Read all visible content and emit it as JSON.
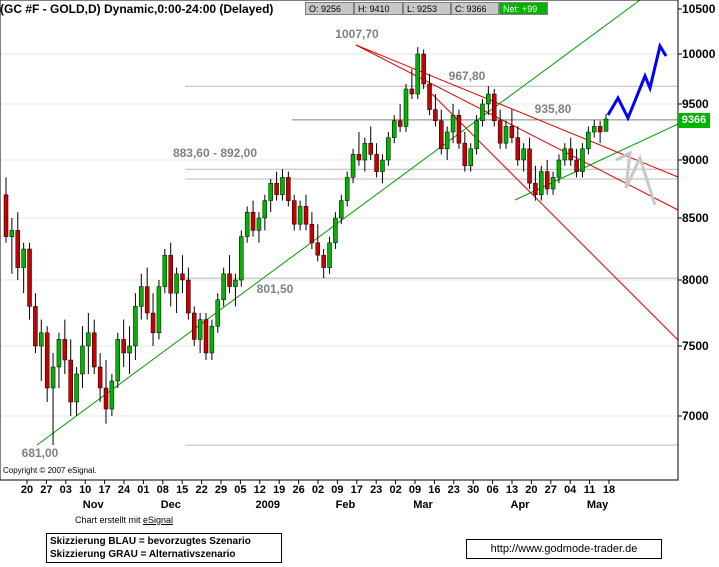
{
  "header": {
    "title": "(GC #F - GOLD,D) Dynamic,0:00-24:00 (Delayed)",
    "open": "O: 9256",
    "high": "H: 9410",
    "low": "L: 9253",
    "close": "C: 9366",
    "net": "Net: +99"
  },
  "footer": {
    "copyright": "Copyright © 2007 eSignal.",
    "credit_prefix": "Chart erstellt mit",
    "credit_link": "eSignal",
    "legend_blue": "Skizzierung BLAU = bevorzugtes Szenario",
    "legend_grey": "Skizzierung GRAU = Alternativszenario",
    "url": "http://www.godmode-trader.de"
  },
  "chart_data": {
    "type": "candlestick",
    "y_axis": {
      "labels": [
        "10500",
        "10000",
        "9500",
        "9000",
        "8500",
        "8000",
        "7500",
        "7000"
      ],
      "values": [
        10500,
        10000,
        9500,
        9000,
        8500,
        8000,
        7500,
        7000
      ],
      "range": [
        6700,
        10550
      ]
    },
    "x_axis": {
      "day_labels": [
        "20",
        "27",
        "03",
        "10",
        "17",
        "24",
        "01",
        "08",
        "15",
        "22",
        "29",
        "05",
        "12",
        "19",
        "26",
        "02",
        "09",
        "17",
        "23",
        "02",
        "09",
        "16",
        "23",
        "30",
        "06",
        "13",
        "20",
        "27",
        "04",
        "11",
        "18"
      ],
      "month_labels": [
        {
          "label": "Nov",
          "day_index": 3
        },
        {
          "label": "Dec",
          "day_index": 7
        },
        {
          "label": "2009",
          "day_index": 12
        },
        {
          "label": "Feb",
          "day_index": 16
        },
        {
          "label": "Mar",
          "day_index": 20
        },
        {
          "label": "Apr",
          "day_index": 25
        },
        {
          "label": "May",
          "day_index": 29
        }
      ]
    },
    "last_price": "9366",
    "annotations": [
      "1007,70",
      "967,80",
      "935,80",
      "883,60 - 892,00",
      "801,50",
      "681,00"
    ],
    "key_prices": [
      10077,
      9678,
      9358,
      8836,
      8920,
      8015,
      6810
    ],
    "colors": {
      "bull": "#00b400",
      "bear": "#c80000",
      "support_line": "#00a000",
      "resistance_line": "#e00000",
      "preferred": "#0000ff",
      "alternative": "#c8c8c8"
    },
    "candles": [
      [
        8700,
        8850,
        8300,
        8350
      ],
      [
        8350,
        8500,
        8050,
        8400
      ],
      [
        8400,
        8550,
        8000,
        8100
      ],
      [
        8100,
        8300,
        7900,
        8250
      ],
      [
        8250,
        8300,
        7700,
        7800
      ],
      [
        7800,
        7900,
        7450,
        7500
      ],
      [
        7500,
        7700,
        7250,
        7600
      ],
      [
        7600,
        7650,
        7100,
        7200
      ],
      [
        7200,
        7450,
        6810,
        7350
      ],
      [
        7350,
        7600,
        7200,
        7550
      ],
      [
        7550,
        7700,
        7300,
        7400
      ],
      [
        7400,
        7550,
        7000,
        7100
      ],
      [
        7100,
        7350,
        7000,
        7300
      ],
      [
        7300,
        7650,
        7200,
        7500
      ],
      [
        7500,
        7750,
        7300,
        7600
      ],
      [
        7600,
        7700,
        7300,
        7350
      ],
      [
        7350,
        7450,
        7100,
        7200
      ],
      [
        7200,
        7400,
        6950,
        7050
      ],
      [
        7050,
        7300,
        7000,
        7250
      ],
      [
        7250,
        7600,
        7200,
        7550
      ],
      [
        7550,
        7700,
        7350,
        7450
      ],
      [
        7450,
        7650,
        7300,
        7500
      ],
      [
        7500,
        7900,
        7400,
        7800
      ],
      [
        7800,
        8050,
        7700,
        7950
      ],
      [
        7950,
        8100,
        7700,
        7750
      ],
      [
        7750,
        7900,
        7500,
        7600
      ],
      [
        7600,
        8000,
        7550,
        7950
      ],
      [
        7950,
        8250,
        7900,
        8200
      ],
      [
        8200,
        8300,
        7800,
        7900
      ],
      [
        7900,
        8100,
        7750,
        8050
      ],
      [
        8050,
        8200,
        7900,
        8000
      ],
      [
        8000,
        8100,
        7700,
        7750
      ],
      [
        7750,
        7800,
        7500,
        7550
      ],
      [
        7550,
        7750,
        7450,
        7700
      ],
      [
        7700,
        7750,
        7400,
        7450
      ],
      [
        7450,
        7700,
        7400,
        7650
      ],
      [
        7650,
        7900,
        7600,
        7850
      ],
      [
        7850,
        8100,
        7800,
        8050
      ],
      [
        8050,
        8200,
        7900,
        7950
      ],
      [
        7950,
        8050,
        7800,
        8000
      ],
      [
        8000,
        8400,
        7950,
        8350
      ],
      [
        8350,
        8600,
        8300,
        8550
      ],
      [
        8550,
        8650,
        8350,
        8400
      ],
      [
        8400,
        8550,
        8300,
        8500
      ],
      [
        8500,
        8700,
        8400,
        8650
      ],
      [
        8650,
        8836,
        8550,
        8800
      ],
      [
        8800,
        8900,
        8650,
        8700
      ],
      [
        8700,
        8920,
        8650,
        8850
      ],
      [
        8850,
        8900,
        8600,
        8650
      ],
      [
        8650,
        8700,
        8400,
        8450
      ],
      [
        8450,
        8650,
        8400,
        8600
      ],
      [
        8600,
        8700,
        8400,
        8450
      ],
      [
        8450,
        8550,
        8250,
        8300
      ],
      [
        8300,
        8450,
        8150,
        8200
      ],
      [
        8200,
        8250,
        8015,
        8100
      ],
      [
        8100,
        8350,
        8050,
        8300
      ],
      [
        8300,
        8550,
        8250,
        8500
      ],
      [
        8500,
        8700,
        8450,
        8650
      ],
      [
        8650,
        8900,
        8600,
        8850
      ],
      [
        8850,
        9100,
        8800,
        9050
      ],
      [
        9050,
        9250,
        8950,
        9000
      ],
      [
        9000,
        9200,
        8900,
        9150
      ],
      [
        9150,
        9300,
        9000,
        9050
      ],
      [
        9050,
        9150,
        8850,
        8900
      ],
      [
        8900,
        9050,
        8800,
        9000
      ],
      [
        9000,
        9250,
        8950,
        9200
      ],
      [
        9200,
        9400,
        9150,
        9350
      ],
      [
        9350,
        9500,
        9250,
        9300
      ],
      [
        9300,
        9700,
        9250,
        9650
      ],
      [
        9650,
        9850,
        9550,
        9600
      ],
      [
        9600,
        10077,
        9550,
        10000
      ],
      [
        10000,
        10050,
        9650,
        9700
      ],
      [
        9700,
        9800,
        9400,
        9450
      ],
      [
        9450,
        9600,
        9300,
        9350
      ],
      [
        9350,
        9450,
        9050,
        9100
      ],
      [
        9100,
        9300,
        9000,
        9250
      ],
      [
        9250,
        9500,
        9150,
        9400
      ],
      [
        9400,
        9450,
        9100,
        9150
      ],
      [
        9150,
        9250,
        8900,
        8950
      ],
      [
        8950,
        9150,
        8900,
        9100
      ],
      [
        9100,
        9400,
        9050,
        9350
      ],
      [
        9350,
        9550,
        9300,
        9500
      ],
      [
        9500,
        9678,
        9400,
        9600
      ],
      [
        9600,
        9650,
        9300,
        9350
      ],
      [
        9350,
        9450,
        9100,
        9150
      ],
      [
        9150,
        9350,
        9100,
        9300
      ],
      [
        9300,
        9450,
        9150,
        9200
      ],
      [
        9200,
        9300,
        8950,
        9000
      ],
      [
        9000,
        9150,
        8900,
        9100
      ],
      [
        9100,
        9200,
        8750,
        8800
      ],
      [
        8800,
        8950,
        8650,
        8700
      ],
      [
        8700,
        8950,
        8650,
        8900
      ],
      [
        8900,
        9000,
        8700,
        8750
      ],
      [
        8750,
        8900,
        8700,
        8850
      ],
      [
        8850,
        9050,
        8800,
        9000
      ],
      [
        9000,
        9150,
        8950,
        9100
      ],
      [
        9100,
        9200,
        8950,
        9000
      ],
      [
        9000,
        9100,
        8850,
        8900
      ],
      [
        8900,
        9150,
        8850,
        9100
      ],
      [
        9100,
        9300,
        9050,
        9250
      ],
      [
        9250,
        9358,
        9200,
        9300
      ],
      [
        9300,
        9350,
        9150,
        9250
      ],
      [
        9256,
        9410,
        9253,
        9366
      ]
    ]
  }
}
